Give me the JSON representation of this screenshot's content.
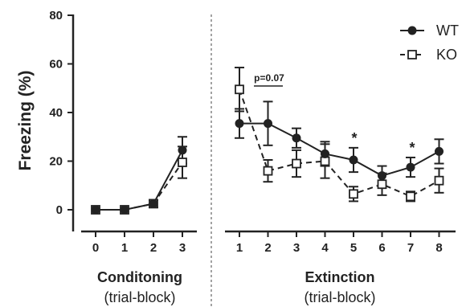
{
  "chart_data": {
    "type": "line",
    "ylabel": "Freezing (%)",
    "ylim": [
      0,
      80
    ],
    "y_ticks": [
      "0",
      "20",
      "40",
      "60",
      "80"
    ],
    "panels": [
      {
        "title": "Conditoning",
        "subtitle": "(trial-block)",
        "x": [
          "0",
          "1",
          "2",
          "3"
        ],
        "series": [
          {
            "name": "WT",
            "values": [
              0,
              0,
              2.5,
              24.5
            ],
            "errors": [
              0,
              0,
              1.5,
              5.5
            ]
          },
          {
            "name": "KO",
            "values": [
              0,
              0,
              2.5,
              19.5
            ],
            "errors": [
              0,
              0,
              1.5,
              6.5
            ]
          }
        ]
      },
      {
        "title": "Extinction",
        "subtitle": "(trial-block)",
        "x": [
          "1",
          "2",
          "3",
          "4",
          "5",
          "6",
          "7",
          "8"
        ],
        "series": [
          {
            "name": "WT",
            "values": [
              35.5,
              35.5,
              29.5,
              23,
              20.5,
              14,
              17.5,
              24
            ],
            "errors": [
              6,
              9,
              4,
              5,
              5,
              4,
              4,
              5
            ]
          },
          {
            "name": "KO",
            "values": [
              49.5,
              16,
              19,
              20,
              6.5,
              10.5,
              5.5,
              12
            ],
            "errors": [
              9,
              4.5,
              5.5,
              7,
              3,
              4.5,
              2,
              5
            ]
          }
        ]
      }
    ],
    "annotations": [
      {
        "text": "p=0.07",
        "panel": 1,
        "at": "2"
      },
      {
        "text": "*",
        "panel": 1,
        "at": "5"
      },
      {
        "text": "*",
        "panel": 1,
        "at": "7"
      }
    ],
    "legend": {
      "position": "top-right",
      "items": [
        "WT",
        "KO"
      ]
    },
    "series_style": {
      "WT": "solid line, filled circle",
      "KO": "dashed line, open square"
    },
    "colors": {
      "ink": "#222222",
      "background": "#ffffff"
    }
  }
}
